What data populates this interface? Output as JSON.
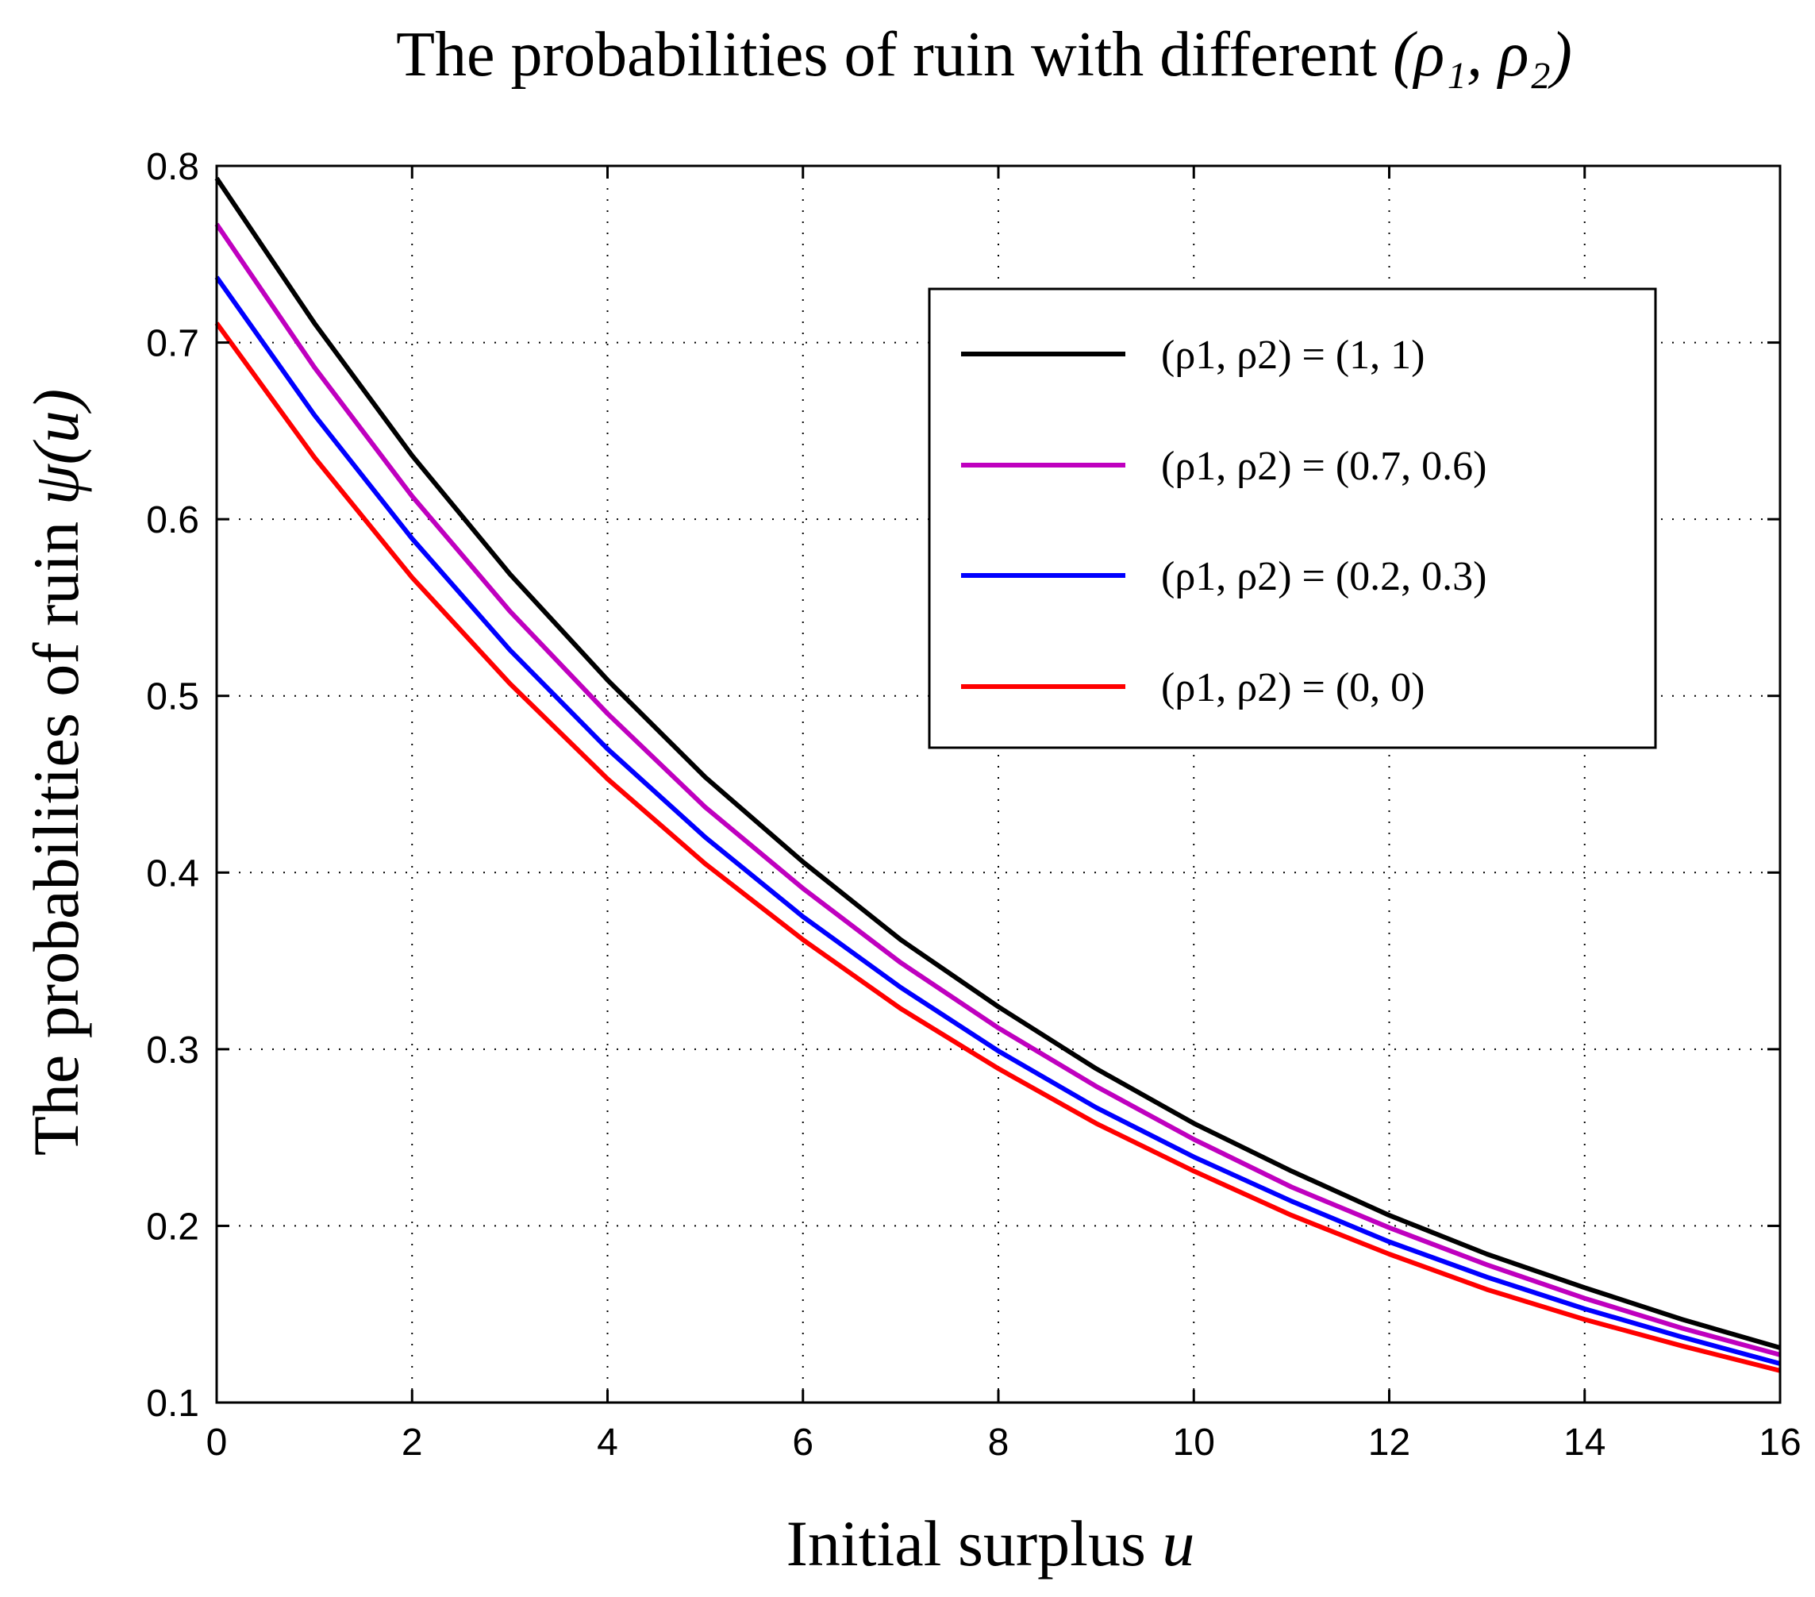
{
  "chart_data": {
    "type": "line",
    "title": {
      "text": "The probabilities of ruin with different ",
      "math": "(ρ₁, ρ₂)"
    },
    "xlabel": {
      "text": "Initial surplus ",
      "math": "u"
    },
    "ylabel": {
      "text": "The probabilities of ruin ",
      "math": "ψ(u)"
    },
    "xlim": [
      0,
      16
    ],
    "ylim": [
      0.1,
      0.8
    ],
    "xticks": [
      0,
      2,
      4,
      6,
      8,
      10,
      12,
      14,
      16
    ],
    "yticks": [
      0.1,
      0.2,
      0.3,
      0.4,
      0.5,
      0.6,
      0.7,
      0.8
    ],
    "xtick_labels": [
      "0",
      "2",
      "4",
      "6",
      "8",
      "10",
      "12",
      "14",
      "16"
    ],
    "ytick_labels": [
      "0.1",
      "0.2",
      "0.3",
      "0.4",
      "0.5",
      "0.6",
      "0.7",
      "0.8"
    ],
    "grid": true,
    "legend_position": "top-right",
    "x": [
      0,
      1,
      2,
      3,
      4,
      5,
      6,
      7,
      8,
      9,
      10,
      11,
      12,
      13,
      14,
      15,
      16
    ],
    "series": [
      {
        "name": "(ρ1, ρ2) = (1, 1)",
        "color": "#000000",
        "values": [
          0.793,
          0.711,
          0.636,
          0.569,
          0.509,
          0.454,
          0.406,
          0.362,
          0.324,
          0.289,
          0.258,
          0.231,
          0.206,
          0.184,
          0.165,
          0.147,
          0.131
        ]
      },
      {
        "name": "(ρ1, ρ2) = (0.7, 0.6)",
        "color": "#bf00bf",
        "values": [
          0.767,
          0.686,
          0.613,
          0.548,
          0.49,
          0.437,
          0.391,
          0.349,
          0.312,
          0.279,
          0.249,
          0.222,
          0.199,
          0.178,
          0.159,
          0.142,
          0.127
        ]
      },
      {
        "name": "(ρ1, ρ2) = (0.2, 0.3)",
        "color": "#0000ff",
        "values": [
          0.737,
          0.659,
          0.589,
          0.526,
          0.47,
          0.42,
          0.375,
          0.335,
          0.299,
          0.267,
          0.239,
          0.214,
          0.191,
          0.171,
          0.153,
          0.137,
          0.122
        ]
      },
      {
        "name": "(ρ1, ρ2) = (0, 0)",
        "color": "#ff0000",
        "values": [
          0.711,
          0.635,
          0.567,
          0.507,
          0.453,
          0.405,
          0.362,
          0.323,
          0.289,
          0.258,
          0.231,
          0.206,
          0.184,
          0.164,
          0.147,
          0.132,
          0.118
        ]
      }
    ]
  }
}
